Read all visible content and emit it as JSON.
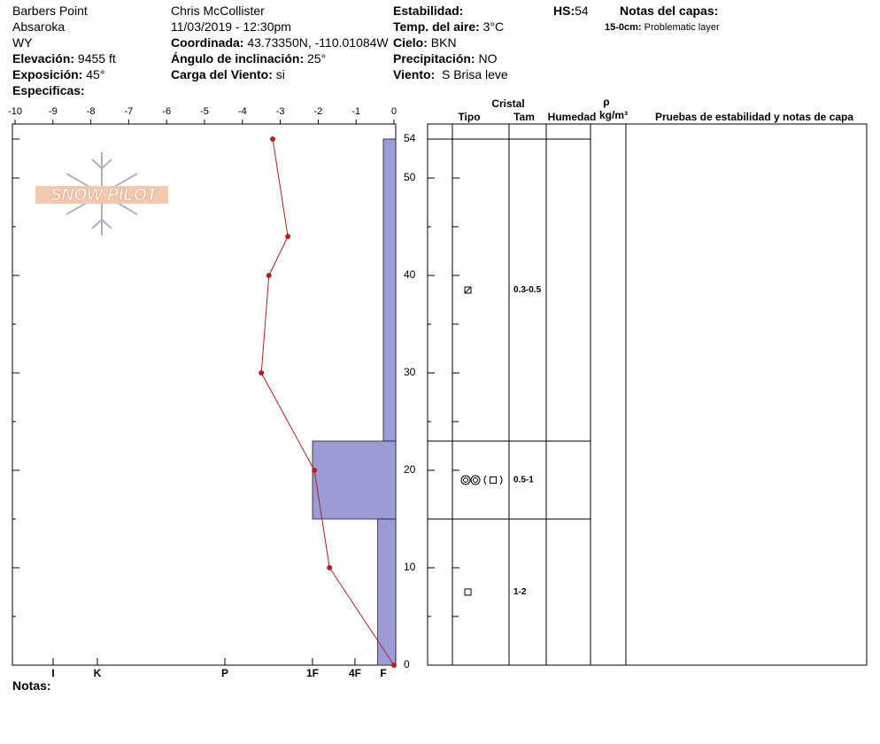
{
  "header": {
    "col1": [
      "Barbers Point",
      "Absaroka",
      "WY"
    ],
    "elevation": {
      "label": "Elevación:",
      "value": "9455 ft"
    },
    "aspect": {
      "label": "Exposición:",
      "value": "45°"
    },
    "specifics": {
      "label": "Especificas:"
    },
    "observer": "Chris McCollister",
    "datetime": "11/03/2019 - 12:30pm",
    "coords": {
      "label": "Coordinada:",
      "value": "43.73350N, -110.01084W"
    },
    "slope": {
      "label": "Ángulo de inclinación:",
      "value": "25°"
    },
    "wind_load": {
      "label": "Carga del Viento:",
      "value": "si"
    },
    "stability": {
      "label": "Estabilidad:"
    },
    "air_temp": {
      "label": "Temp. del aire:",
      "value": "3°C"
    },
    "sky": {
      "label": "Cielo:",
      "value": "BKN"
    },
    "precip": {
      "label": "Precipitación:",
      "value": "NO"
    },
    "wind": {
      "label": "Viento:",
      "value": "S Brisa leve"
    },
    "hs": {
      "label": "HS:",
      "value": "54"
    },
    "layer_notes": {
      "title": "Notas del capas:",
      "items": [
        {
          "range": "15-0cm:",
          "text": "Problematic layer"
        }
      ]
    }
  },
  "logo": "SNOW PILOT",
  "notes": {
    "label": "Notas:"
  },
  "chart_data": [
    {
      "type": "line",
      "xlim": [
        -10,
        0
      ],
      "xticks": [
        -10,
        -9,
        -8,
        -7,
        -6,
        -5,
        -4,
        -3,
        -2,
        -1,
        0
      ],
      "ylim": [
        0,
        54
      ],
      "yticks": [
        0,
        10,
        20,
        30,
        40,
        50,
        54
      ],
      "yticks_minor": [
        5,
        15,
        25,
        35,
        45
      ],
      "depths": [
        54,
        44,
        40,
        30,
        20,
        10,
        0
      ],
      "values": [
        -3.2,
        -2.8,
        -3.3,
        -3.5,
        -2.1,
        -1.7,
        0
      ],
      "color": "#b22222"
    },
    {
      "type": "bar",
      "xlim": [
        0,
        6
      ],
      "xticks": [
        {
          "value": 6,
          "label": "I"
        },
        {
          "value": 5,
          "label": "K"
        },
        {
          "value": 4,
          "label": "P"
        },
        {
          "value": 3,
          "label": "1F"
        },
        {
          "value": 2,
          "label": "4F"
        },
        {
          "value": 1,
          "label": "F"
        }
      ],
      "layer_tops": [
        54,
        23,
        15
      ],
      "layer_bottoms": [
        23,
        15,
        0
      ],
      "values": [
        1,
        3,
        1.2
      ],
      "color": "#9b9bd8"
    }
  ],
  "layers_table": {
    "header": {
      "group": "Cristal",
      "type": "Tipo",
      "size": "Tam",
      "moisture": "Humedad",
      "density_symbol": "ρ",
      "density_unit": "kg/m³",
      "tests": "Pruebas de estabilidad y notas de capa"
    },
    "rows": [
      {
        "size": "0.3-0.5"
      },
      {
        "size": "0.5-1"
      },
      {
        "size": "1-2"
      }
    ]
  }
}
